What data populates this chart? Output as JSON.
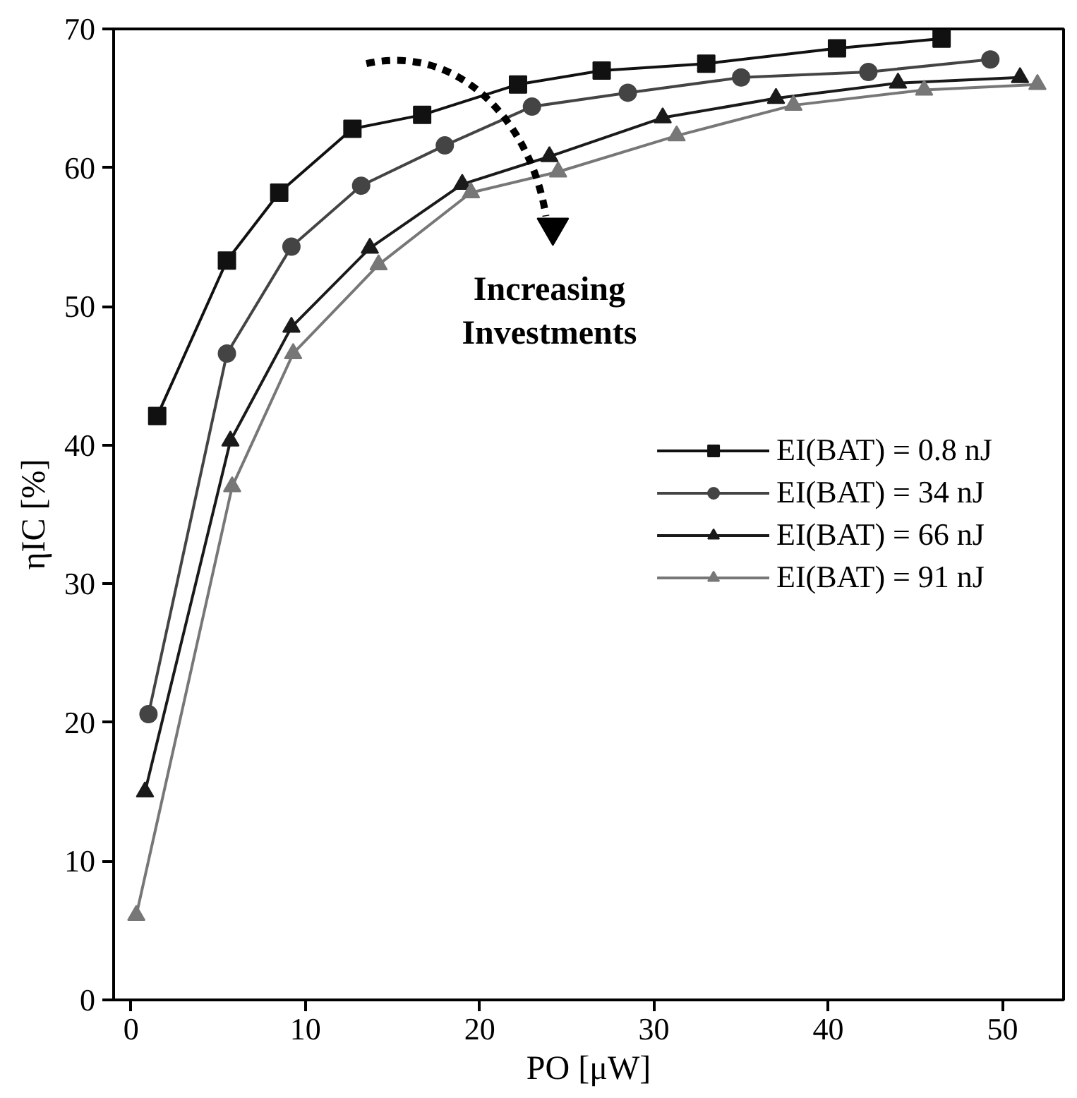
{
  "chart_data": {
    "type": "line",
    "xlabel": "PO [μW]",
    "ylabel": "ηIC [%]",
    "xlim": [
      -1,
      53.5
    ],
    "xticks": [
      0,
      10,
      20,
      30,
      40,
      50
    ],
    "ylim": [
      0,
      70
    ],
    "yticks": [
      0,
      10,
      20,
      30,
      40,
      50,
      60,
      70
    ],
    "grid": false,
    "legend": "right",
    "line_style": "solid",
    "annotations": [
      "Increasing\nInvestments"
    ],
    "series": [
      {
        "name": "EI(BAT) = 0.8 nJ",
        "color": "#111111",
        "marker": "square",
        "x": [
          1.5,
          5.5,
          8.5,
          12.7,
          16.7,
          22.2,
          27,
          33,
          40.5,
          46.5
        ],
        "values": [
          42.1,
          53.3,
          58.2,
          62.8,
          63.8,
          66,
          67,
          67.5,
          68.6,
          69.3
        ]
      },
      {
        "name": "EI(BAT) = 34 nJ",
        "color": "#444444",
        "marker": "circle",
        "x": [
          1,
          5.5,
          9.2,
          13.2,
          18,
          23,
          28.5,
          35,
          42.3,
          49.3
        ],
        "values": [
          20.6,
          46.6,
          54.3,
          58.7,
          61.6,
          64.4,
          65.4,
          66.5,
          66.9,
          67.8
        ]
      },
      {
        "name": "EI(BAT) = 66 nJ",
        "color": "#1a1a1a",
        "marker": "triangle",
        "x": [
          0.8,
          5.7,
          9.2,
          13.7,
          19,
          24,
          30.5,
          37,
          44,
          51
        ],
        "values": [
          15,
          40.3,
          48.5,
          54.2,
          58.8,
          60.8,
          63.6,
          65,
          66.1,
          66.5
        ]
      },
      {
        "name": "EI(BAT) = 91 nJ",
        "color": "#777777",
        "marker": "triangle",
        "x": [
          0.3,
          5.8,
          9.3,
          14.2,
          19.5,
          24.5,
          31.3,
          38,
          45.5,
          52
        ],
        "values": [
          6.1,
          37,
          46.6,
          53,
          58.2,
          59.7,
          62.3,
          64.5,
          65.6,
          66
        ]
      }
    ]
  }
}
